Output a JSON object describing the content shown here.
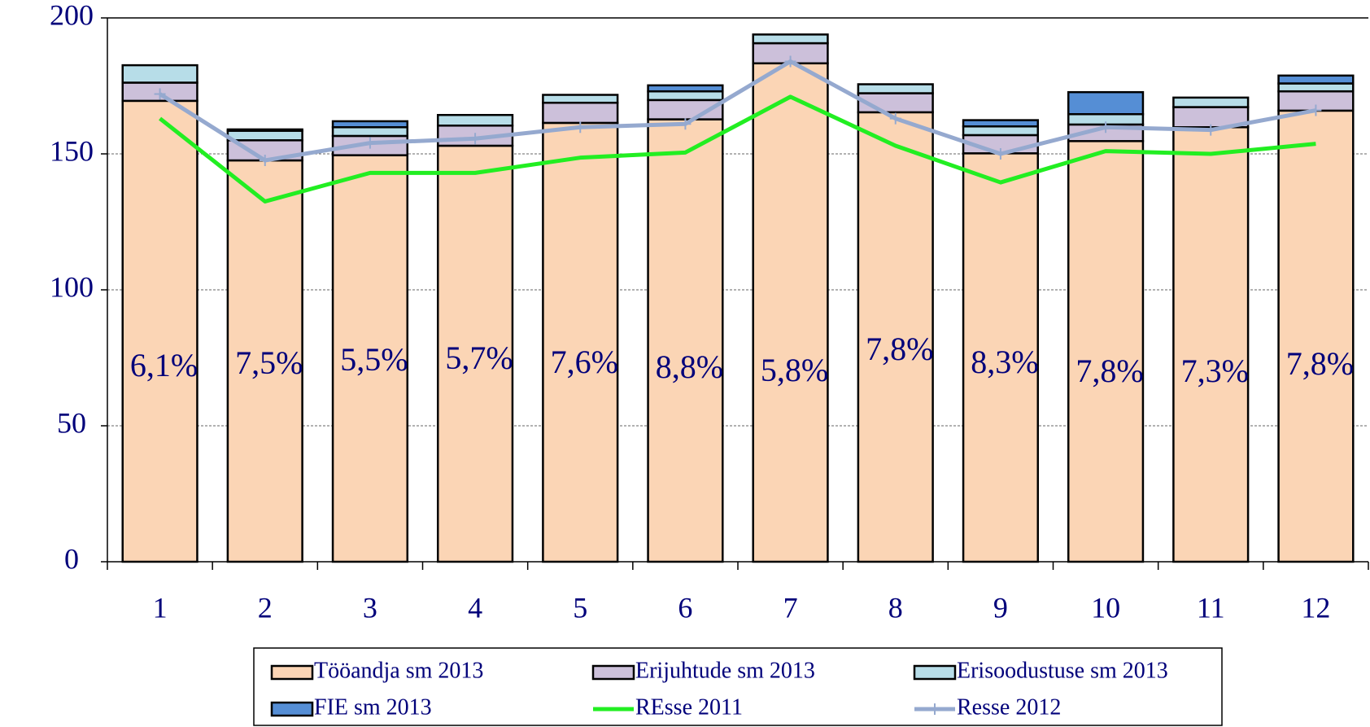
{
  "chart_data": {
    "type": "bar",
    "stacked": true,
    "categories": [
      "1",
      "2",
      "3",
      "4",
      "5",
      "6",
      "7",
      "8",
      "9",
      "10",
      "11",
      "12"
    ],
    "series": [
      {
        "name": "Tööandja sm 2013",
        "type": "bar",
        "color": "#fbd5b5",
        "values": [
          169.5,
          147.6,
          149.5,
          153,
          161.4,
          162.7,
          183.3,
          165.3,
          150.2,
          154.7,
          159.8,
          165.9
        ]
      },
      {
        "name": "Erijuhtude sm 2013",
        "type": "bar",
        "color": "#ccc0da",
        "values": [
          6.7,
          7.4,
          7.1,
          7.4,
          7.4,
          7.1,
          7.4,
          7,
          6.7,
          6.1,
          7.4,
          7.1
        ]
      },
      {
        "name": "Erisoodustuse sm 2013",
        "type": "bar",
        "color": "#b7dde8",
        "values": [
          6.4,
          3.5,
          3.2,
          3.9,
          2.9,
          3.2,
          3.2,
          3.3,
          3.2,
          3.8,
          3.5,
          2.9
        ]
      },
      {
        "name": "FIE sm 2013",
        "type": "bar",
        "color": "#558ed5",
        "values": [
          0,
          0.5,
          2.2,
          0,
          0,
          2.2,
          0,
          0,
          2.3,
          8.1,
          0,
          2.9
        ]
      },
      {
        "name": "REsse 2011",
        "type": "line",
        "color": "#22ee22",
        "values": [
          163,
          132.5,
          143,
          143,
          148.6,
          150.5,
          171,
          153,
          139.5,
          151,
          150,
          153.7
        ]
      },
      {
        "name": "Resse 2012",
        "type": "line",
        "color": "#95a9cf",
        "marker": "plus",
        "values": [
          172,
          147.6,
          154,
          155.6,
          159.8,
          161,
          184,
          163,
          150,
          159.8,
          158.8,
          166
        ]
      }
    ],
    "annotations": [
      "6,1%",
      "7,5%",
      "5,5%",
      "5,7%",
      "7,6%",
      "8,8%",
      "5,8%",
      "7,8%",
      "8,3%",
      "7,8%",
      "7,3%",
      "7,8%"
    ],
    "ylim": [
      0,
      200
    ],
    "yticks": [
      0,
      50,
      100,
      150,
      200
    ],
    "grid": true,
    "legend": "bottom"
  }
}
